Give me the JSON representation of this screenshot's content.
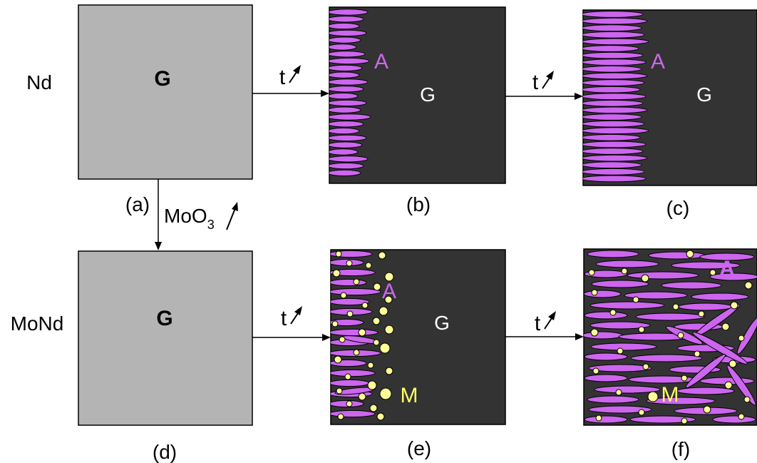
{
  "rows": {
    "top": "Nd",
    "bottom": "MoNd"
  },
  "panels": {
    "a": {
      "caption": "(a)",
      "label": "G"
    },
    "b": {
      "caption": "(b)",
      "label_G": "G",
      "label_A": "A"
    },
    "c": {
      "caption": "(c)",
      "label_G": "G",
      "label_A": "A"
    },
    "d": {
      "caption": "(d)",
      "label": "G"
    },
    "e": {
      "caption": "(e)",
      "label_G": "G",
      "label_A": "A",
      "label_M": "M"
    },
    "f": {
      "caption": "(f)",
      "label_A": "A",
      "label_M": "M"
    }
  },
  "arrows": {
    "time": "t",
    "moo3_main": "MoO",
    "moo3_sub": "3"
  },
  "colors": {
    "glass": "#b4b4b4",
    "matrix": "#333333",
    "apatite": "#cc66ee",
    "molybdate": "#ffff99"
  }
}
